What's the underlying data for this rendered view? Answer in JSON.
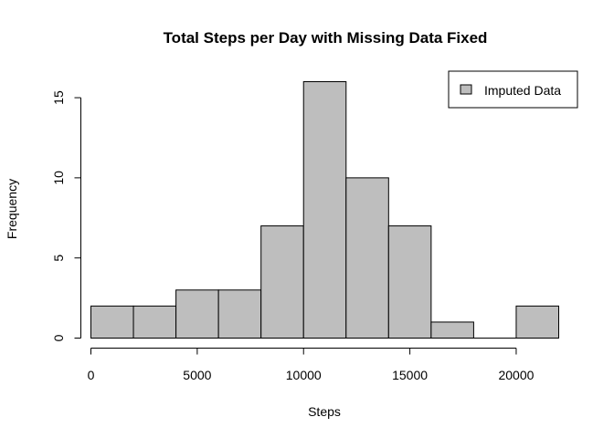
{
  "chart_data": {
    "type": "bar",
    "title": "Total Steps per Day with Missing Data Fixed",
    "xlabel": "Steps",
    "ylabel": "Frequency",
    "bins": [
      {
        "from": 0,
        "to": 2000,
        "count": 2
      },
      {
        "from": 2000,
        "to": 4000,
        "count": 2
      },
      {
        "from": 4000,
        "to": 6000,
        "count": 3
      },
      {
        "from": 6000,
        "to": 8000,
        "count": 3
      },
      {
        "from": 8000,
        "to": 10000,
        "count": 7
      },
      {
        "from": 10000,
        "to": 12000,
        "count": 16
      },
      {
        "from": 12000,
        "to": 14000,
        "count": 10
      },
      {
        "from": 14000,
        "to": 16000,
        "count": 7
      },
      {
        "from": 16000,
        "to": 18000,
        "count": 1
      },
      {
        "from": 18000,
        "to": 20000,
        "count": 0
      },
      {
        "from": 20000,
        "to": 22000,
        "count": 2
      }
    ],
    "x_ticks": [
      "0",
      "5000",
      "10000",
      "15000",
      "20000"
    ],
    "y_ticks": [
      "0",
      "5",
      "10",
      "15"
    ],
    "xlim": [
      0,
      22000
    ],
    "ylim": [
      0,
      16
    ],
    "grid": false,
    "legend": {
      "position": "top-right",
      "entries": [
        {
          "label": "Imputed Data",
          "color": "#bebebe"
        }
      ]
    },
    "colors": {
      "bar_fill": "#bebebe",
      "bar_stroke": "#000000"
    }
  }
}
